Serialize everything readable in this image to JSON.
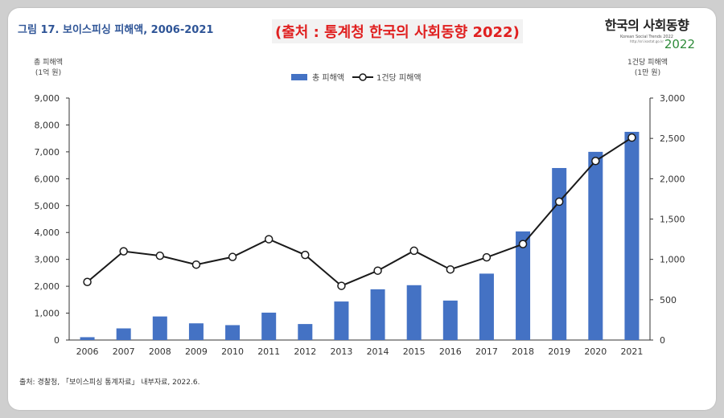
{
  "fig_title": "그림 17. 보이스피싱 피해액, 2006-2021",
  "source_banner": "(출처 : 통계청 한국의 사회동향 2022)",
  "logo": {
    "main": "한국의 사회동향",
    "sub": "Korean Social Trends 2022",
    "url": "http://sri.kostat.go.kr",
    "year": "2022"
  },
  "colors": {
    "bar": "#4472c4",
    "line": "#1a1a1a",
    "title": "#2f5597",
    "source": "#e02020"
  },
  "footnote": "출처: 경찰청, 「보이스피싱 통계자료」 내부자료, 2022.6.",
  "chart_data": {
    "type": "bar",
    "title": "보이스피싱 피해액, 2006-2021",
    "categories": [
      "2006",
      "2007",
      "2008",
      "2009",
      "2010",
      "2011",
      "2012",
      "2013",
      "2014",
      "2015",
      "2016",
      "2017",
      "2018",
      "2019",
      "2020",
      "2021"
    ],
    "y_left_label_line1": "총 피해액",
    "y_left_label_line2": "(1억 원)",
    "y_right_label_line1": "1건당 피해액",
    "y_right_label_line2": "(1만 원)",
    "y_left_ticks": [
      "0",
      "1,000",
      "2,000",
      "3,000",
      "4,000",
      "5,000",
      "6,000",
      "7,000",
      "8,000",
      "9,000"
    ],
    "y_right_ticks": [
      "0",
      "500",
      "1,000",
      "1,500",
      "2,000",
      "2,500",
      "3,000"
    ],
    "ylim_left": [
      0,
      9000
    ],
    "ylim_right": [
      0,
      3000
    ],
    "series": [
      {
        "name": "총 피해액",
        "type": "bar",
        "axis": "left",
        "values": [
          106,
          433,
          877,
          621,
          554,
          1019,
          595,
          1433,
          1887,
          2040,
          1468,
          2470,
          4040,
          6398,
          7000,
          7744
        ]
      },
      {
        "name": "1건당 피해액",
        "type": "line",
        "axis": "right",
        "values": [
          720,
          1100,
          1045,
          935,
          1030,
          1250,
          1055,
          672,
          860,
          1107,
          875,
          1025,
          1190,
          1715,
          2220,
          2510
        ]
      }
    ]
  }
}
